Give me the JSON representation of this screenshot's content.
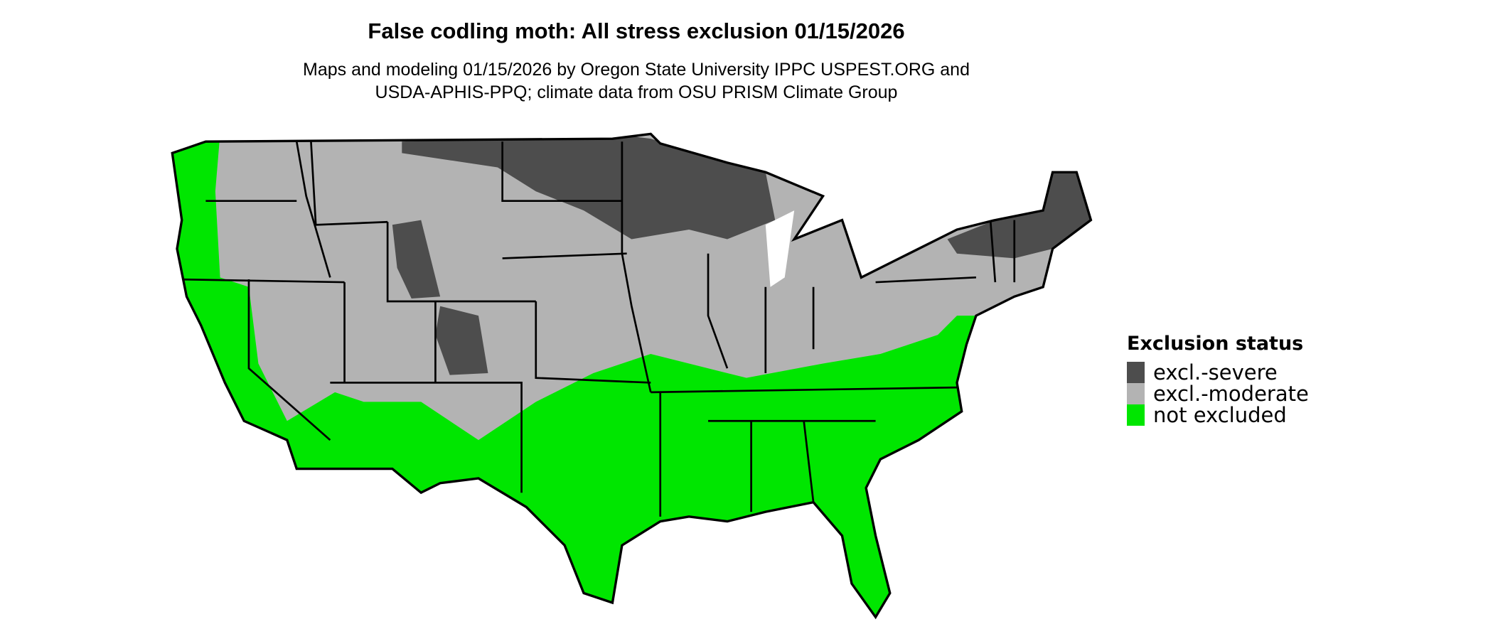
{
  "title": "False codling moth: All stress exclusion 01/15/2026",
  "subtitle_line1": "Maps and modeling 01/15/2026 by Oregon State University IPPC USPEST.ORG and",
  "subtitle_line2": "USDA-APHIS-PPQ; climate data from OSU PRISM Climate Group",
  "legend": {
    "title": "Exclusion status",
    "items": [
      {
        "label": "excl.-severe",
        "color": "#4d4d4d"
      },
      {
        "label": "excl.-moderate",
        "color": "#b3b3b3"
      },
      {
        "label": "not excluded",
        "color": "#00e600"
      }
    ]
  },
  "map": {
    "region": "Contiguous United States",
    "colors": {
      "severe": "#4d4d4d",
      "moderate": "#b3b3b3",
      "not_excluded": "#00e600",
      "border": "#000000"
    }
  }
}
